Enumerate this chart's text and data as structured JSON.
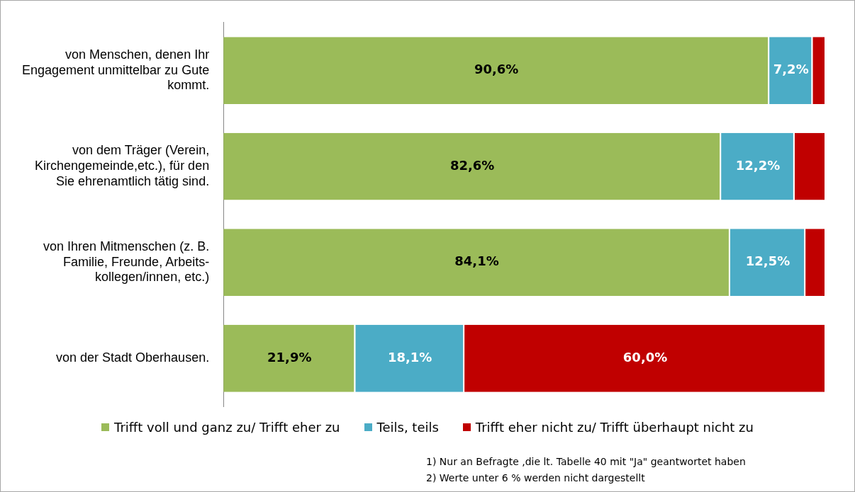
{
  "chart_data": {
    "type": "bar",
    "orientation": "horizontal",
    "stacked": true,
    "legend": "bottom",
    "categories": [
      "von Menschen, denen Ihr Engagement unmittelbar zu Gute kommt.",
      "von dem Träger (Verein, Kirchengemeinde,etc.), für den Sie ehrenamtlich tätig sind.",
      "von Ihren Mitmenschen (z. B. Familie, Freunde, Arbeits-kollegen/innen, etc.)",
      "von der Stadt Oberhausen."
    ],
    "series": [
      {
        "name": "Trifft voll und ganz zu/ Trifft eher zu",
        "color": "#9bbb59",
        "values": [
          90.6,
          82.6,
          84.1,
          21.9
        ],
        "value_labels": [
          "90,6%",
          "82,6%",
          "84,1%",
          "21,9%"
        ]
      },
      {
        "name": "Teils, teils",
        "color": "#4bacc6",
        "values": [
          7.2,
          12.2,
          12.5,
          18.1
        ],
        "value_labels": [
          "7,2%",
          "12,2%",
          "12,5%",
          "18,1%"
        ]
      },
      {
        "name": "Trifft eher nicht zu/ Trifft überhaupt nicht zu",
        "color": "#c00000",
        "values": [
          2.2,
          5.2,
          3.4,
          60.0
        ],
        "value_labels": [
          null,
          null,
          null,
          "60,0%"
        ]
      }
    ],
    "annotations": [
      "1) Nur an Befragte ,die  lt. Tabelle 40 mit \"Ja\" geantwortet haben",
      "2) Werte unter 6 % werden nicht dargestellt"
    ]
  }
}
